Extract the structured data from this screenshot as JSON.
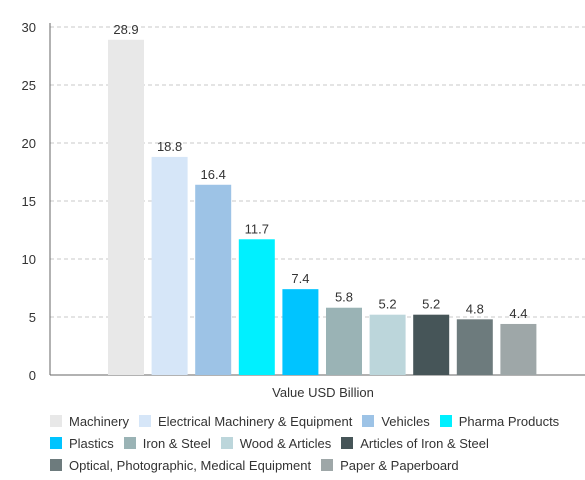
{
  "chart_data": {
    "type": "bar",
    "title": "",
    "xlabel": "Value USD Billion",
    "ylabel": "",
    "ylim": [
      0,
      30
    ],
    "yticks": [
      0,
      5,
      10,
      15,
      20,
      25,
      30
    ],
    "grid": true,
    "legend_position": "bottom",
    "series": [
      {
        "name": "Machinery",
        "value": 28.9,
        "label": "28.9",
        "color": "#e8e8e8"
      },
      {
        "name": "Electrical Machinery & Equipment",
        "value": 18.8,
        "label": "18.8",
        "color": "#d6e6f8"
      },
      {
        "name": "Vehicles",
        "value": 16.4,
        "label": "16.4",
        "color": "#9dc3e6"
      },
      {
        "name": "Pharma Products",
        "value": 11.7,
        "label": "11.7",
        "color": "#00f0ff"
      },
      {
        "name": "Plastics",
        "value": 7.4,
        "label": "7.4",
        "color": "#00c4ff"
      },
      {
        "name": "Iron & Steel",
        "value": 5.8,
        "label": "5.8",
        "color": "#9ab3b5"
      },
      {
        "name": "Wood & Articles",
        "value": 5.2,
        "label": "5.2",
        "color": "#bcd6db"
      },
      {
        "name": "Articles of Iron & Steel",
        "value": 5.2,
        "label": "5.2",
        "color": "#465558"
      },
      {
        "name": "Optical, Photographic, Medical Equipment",
        "value": 4.8,
        "label": "4.8",
        "color": "#6d7b7d"
      },
      {
        "name": "Paper & Paperboard",
        "value": 4.4,
        "label": "4.4",
        "color": "#9ea7a8"
      }
    ]
  }
}
